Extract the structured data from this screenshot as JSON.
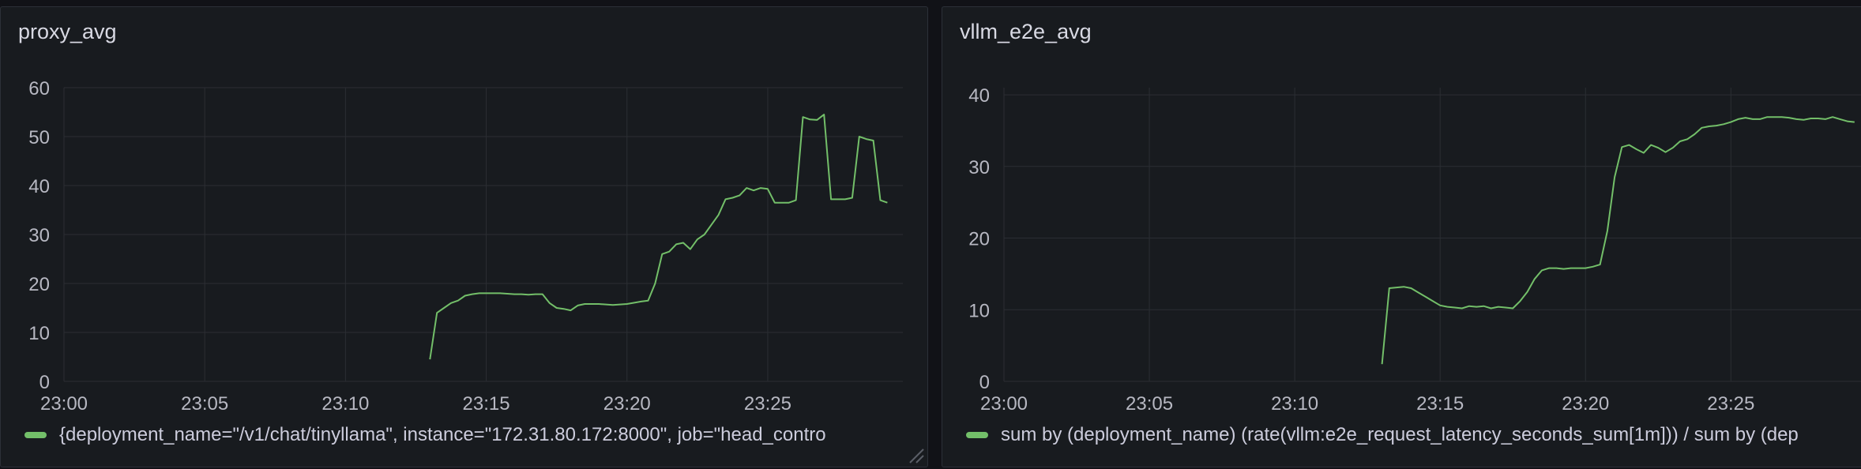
{
  "colors": {
    "series": "#73bf69",
    "grid": "#2b2e33",
    "axis_text": "#b7b8c2"
  },
  "panels": [
    {
      "title": "proxy_avg",
      "legend": "{deployment_name=\"/v1/chat/tinyllama\", instance=\"172.31.80.172:8000\", job=\"head_contro",
      "chart_data": {
        "type": "line",
        "x_label_ticks": [
          "23:00",
          "23:05",
          "23:10",
          "23:15",
          "23:20",
          "23:25"
        ],
        "x_range_minutes": [
          0,
          29.8
        ],
        "y_ticks": [
          0,
          10,
          20,
          30,
          40,
          50,
          60
        ],
        "ylim": [
          0,
          60
        ],
        "grid": true,
        "series": [
          {
            "x": [
              13.0,
              13.25,
              13.5,
              13.75,
              14.0,
              14.25,
              14.5,
              14.75,
              15.0,
              15.5,
              16.0,
              16.25,
              16.5,
              16.75,
              17.0,
              17.25,
              17.5,
              17.75,
              18.0,
              18.25,
              18.5,
              19.0,
              19.5,
              20.0,
              20.5,
              20.75,
              21.0,
              21.25,
              21.5,
              21.75,
              22.0,
              22.25,
              22.5,
              22.75,
              23.0,
              23.25,
              23.5,
              23.75,
              24.0,
              24.25,
              24.5,
              24.75,
              25.0,
              25.25,
              25.5,
              25.75,
              26.0,
              26.25,
              26.5,
              26.75,
              27.0,
              27.25,
              27.5,
              27.75,
              28.0,
              28.25,
              28.5,
              28.75,
              29.0,
              29.25
            ],
            "y": [
              4.5,
              14,
              15,
              16,
              16.5,
              17.5,
              17.8,
              18,
              18,
              18,
              17.8,
              17.8,
              17.7,
              17.8,
              17.8,
              16,
              15,
              14.8,
              14.5,
              15.5,
              15.8,
              15.8,
              15.6,
              15.8,
              16.3,
              16.5,
              20,
              26,
              26.5,
              28,
              28.3,
              27,
              29,
              30,
              32,
              34,
              37.2,
              37.5,
              38,
              39.5,
              39,
              39.5,
              39.3,
              36.5,
              36.5,
              36.5,
              37,
              54,
              53.5,
              53.4,
              54.5,
              37.2,
              37.2,
              37.2,
              37.5,
              50,
              49.5,
              49.2,
              37,
              36.5
            ]
          }
        ]
      }
    },
    {
      "title": "vllm_e2e_avg",
      "legend": "sum by (deployment_name) (rate(vllm:e2e_request_latency_seconds_sum[1m])) / sum by (dep",
      "chart_data": {
        "type": "line",
        "x_label_ticks": [
          "23:00",
          "23:05",
          "23:10",
          "23:15",
          "23:20",
          "23:25"
        ],
        "x_range_minutes": [
          0,
          29.8
        ],
        "y_ticks": [
          0,
          10,
          20,
          30,
          40
        ],
        "ylim": [
          0,
          41
        ],
        "grid": true,
        "series": [
          {
            "x": [
              13.0,
              13.25,
              13.5,
              13.75,
              14.0,
              14.25,
              14.5,
              14.75,
              15.0,
              15.25,
              15.5,
              15.75,
              16.0,
              16.25,
              16.5,
              16.75,
              17.0,
              17.25,
              17.5,
              17.75,
              18.0,
              18.25,
              18.5,
              18.75,
              19.0,
              19.25,
              19.5,
              19.75,
              20.0,
              20.25,
              20.5,
              20.75,
              21.0,
              21.25,
              21.5,
              21.75,
              22.0,
              22.25,
              22.5,
              22.75,
              23.0,
              23.25,
              23.5,
              23.75,
              24.0,
              24.25,
              24.5,
              24.75,
              25.0,
              25.25,
              25.5,
              25.75,
              26.0,
              26.25,
              26.5,
              26.75,
              27.0,
              27.25,
              27.5,
              27.75,
              28.0,
              28.25,
              28.5,
              28.75,
              29.0,
              29.25
            ],
            "y": [
              2.4,
              13.0,
              13.1,
              13.2,
              13.0,
              12.4,
              11.8,
              11.2,
              10.6,
              10.4,
              10.3,
              10.2,
              10.5,
              10.4,
              10.5,
              10.2,
              10.4,
              10.3,
              10.2,
              11.2,
              12.5,
              14.3,
              15.5,
              15.8,
              15.8,
              15.7,
              15.8,
              15.8,
              15.8,
              16.0,
              16.3,
              21.0,
              28.5,
              32.7,
              33.0,
              32.4,
              31.9,
              33.0,
              32.6,
              32.0,
              32.6,
              33.5,
              33.8,
              34.5,
              35.4,
              35.6,
              35.7,
              35.9,
              36.2,
              36.6,
              36.8,
              36.6,
              36.6,
              36.9,
              36.9,
              36.9,
              36.8,
              36.6,
              36.5,
              36.7,
              36.7,
              36.6,
              36.9,
              36.6,
              36.3,
              36.2
            ]
          }
        ]
      }
    }
  ]
}
